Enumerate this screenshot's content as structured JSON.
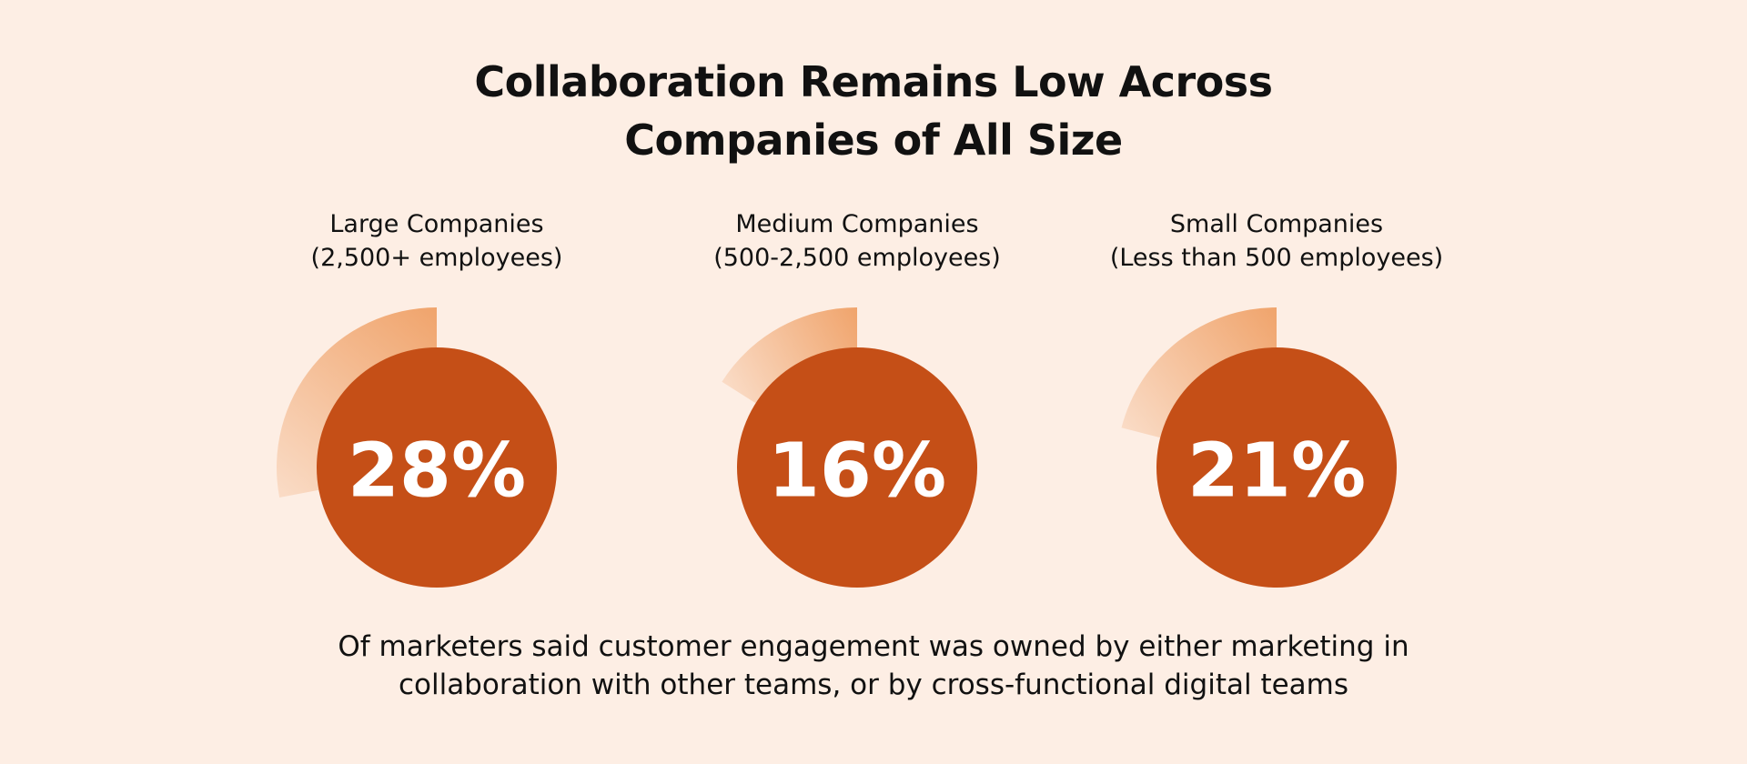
{
  "chart_data": {
    "type": "radial",
    "title": "Collaboration Remains Low Across Companies of All Size",
    "categories": [
      "Large Companies",
      "Medium Companies",
      "Small Companies"
    ],
    "category_notes": [
      "(2,500+ employees)",
      "(500-2,500 employees)",
      "(Less than 500 employees)"
    ],
    "values": [
      28,
      16,
      21
    ],
    "value_labels": [
      "28%",
      "16%",
      "21%"
    ],
    "color": "#c54f17",
    "arc_color": "#f0a46c",
    "caption": "Of marketers said customer engagement was owned by either marketing in collaboration with other teams, or by cross-functional digital teams"
  }
}
